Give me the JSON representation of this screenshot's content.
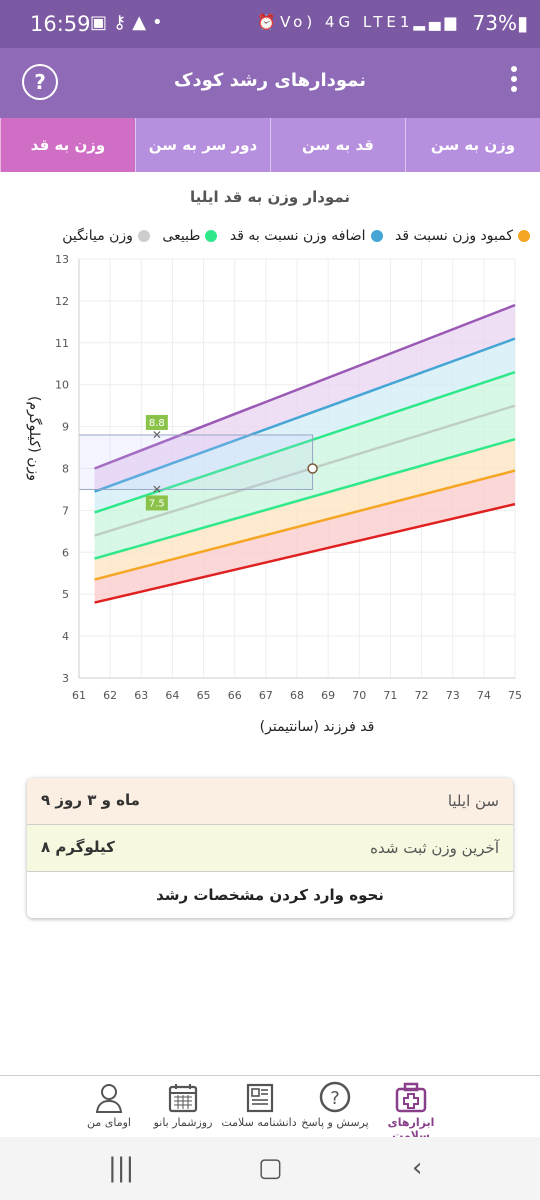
{
  "status_bar": {
    "time": "16:59",
    "battery": "73%",
    "network": "Vo) 4G LTE1"
  },
  "app_bar": {
    "title": "نمودارهای رشد کودک",
    "help_label": "?"
  },
  "tabs": [
    {
      "label": "وزن به سن",
      "active": false
    },
    {
      "label": "قد به سن",
      "active": false
    },
    {
      "label": "دور سر به سن",
      "active": false
    },
    {
      "label": "وزن به قد",
      "active": true
    }
  ],
  "chart": {
    "title": "نمودار وزن به قد ایلیا",
    "legend": [
      {
        "label": "کمبود وزن نسبت قد",
        "color": "#f5a623"
      },
      {
        "label": "اضافه وزن نسبت به قد",
        "color": "#45a6d6"
      },
      {
        "label": "طبیعی",
        "color": "#2ee88a"
      },
      {
        "label": "وزن میانگین",
        "color": "#cccccc"
      }
    ]
  },
  "chart_data": {
    "type": "line",
    "xlabel": "قد فرزند (سانتیمتر)",
    "ylabel": "وزن (کیلوگرم)",
    "xlim": [
      61,
      75
    ],
    "ylim": [
      3,
      13
    ],
    "x_ticks": [
      61,
      62,
      63,
      64,
      65,
      66,
      67,
      68,
      69,
      70,
      71,
      72,
      73,
      74,
      75
    ],
    "y_ticks": [
      3,
      4,
      5,
      6,
      7,
      8,
      9,
      10,
      11,
      12,
      13
    ],
    "grid": true,
    "x": [
      61.5,
      75
    ],
    "series": [
      {
        "color": "#9b59b6",
        "values": [
          8.0,
          11.9
        ]
      },
      {
        "color": "#45a6d6",
        "values": [
          7.45,
          11.1
        ]
      },
      {
        "color": "#2ee88a",
        "values": [
          6.95,
          10.3
        ]
      },
      {
        "color": "#bfcfc4",
        "values": [
          6.4,
          9.5
        ]
      },
      {
        "color": "#2ee88a",
        "values": [
          5.85,
          8.7
        ]
      },
      {
        "color": "#f5a623",
        "values": [
          5.35,
          7.95
        ]
      },
      {
        "color": "#e02020",
        "values": [
          4.8,
          7.15
        ]
      }
    ],
    "bands": [
      {
        "color": "#e9d4f2"
      },
      {
        "color": "#d2ecf6"
      },
      {
        "color": "#c9f5dd"
      },
      {
        "color": "#c9f5dd"
      },
      {
        "color": "#fde3bf"
      },
      {
        "color": "#fbcaca"
      }
    ],
    "child_point": {
      "x": 68.5,
      "y": 8.0
    },
    "reference_markers": [
      {
        "x": 63.5,
        "y": 8.8,
        "label": "8.8"
      },
      {
        "x": 63.5,
        "y": 7.5,
        "label": "7.5"
      }
    ]
  },
  "info": {
    "age_label": "سن ایلیا",
    "age_value": "۹ ماه و ۳ روز",
    "weight_label": "آخرین وزن ثبت شده",
    "weight_value": "۸ کیلوگرم",
    "help_link": "نحوه وارد کردن مشخصات رشد"
  },
  "bottom_nav": [
    {
      "label": "ابزارهای سلامت",
      "icon": "medical-kit-icon",
      "active": true
    },
    {
      "label": "پرسش و پاسخ",
      "icon": "question-bubble-icon",
      "active": false
    },
    {
      "label": "دانشنامه سلامت",
      "icon": "newspaper-icon",
      "active": false
    },
    {
      "label": "روزشمار بانو",
      "icon": "calendar-icon",
      "active": false
    },
    {
      "label": "اومای من",
      "icon": "profile-icon",
      "active": false
    }
  ]
}
